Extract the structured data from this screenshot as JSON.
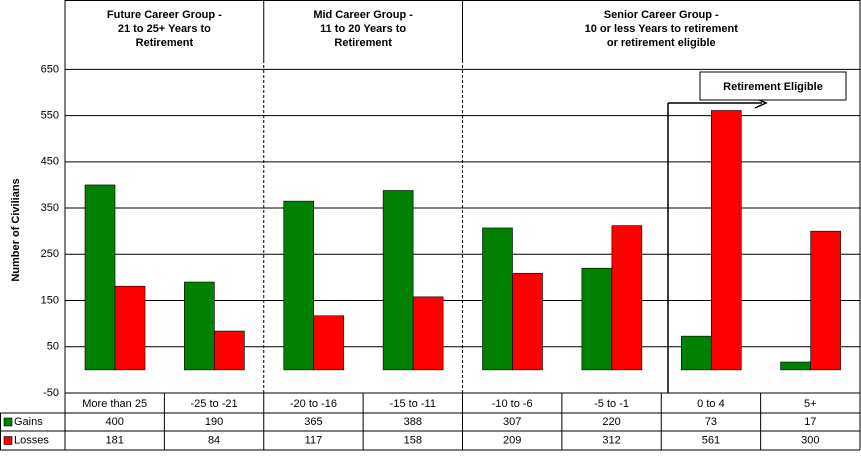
{
  "chart_data": {
    "type": "bar",
    "y_label": "Number of Civilians",
    "categories": [
      "More than 25",
      "-25 to -21",
      "-20 to -16",
      "-15 to -11",
      "-10 to -6",
      "-5 to -1",
      "0 to 4",
      "5+"
    ],
    "series": [
      {
        "name": "Gains",
        "color": "#008000",
        "values": [
          400,
          190,
          365,
          388,
          307,
          220,
          73,
          17
        ]
      },
      {
        "name": "Losses",
        "color": "#ff0000",
        "values": [
          181,
          84,
          117,
          158,
          209,
          312,
          561,
          300
        ]
      }
    ],
    "groups": [
      {
        "lines": [
          "Future Career Group -",
          "21 to 25+ Years to",
          "Retirement"
        ]
      },
      {
        "lines": [
          "Mid Career Group -",
          "11 to 20 Years to",
          "Retirement"
        ]
      },
      {
        "lines": [
          "Senior Career Group -",
          "10 or less Years to retirement",
          "or retirement eligible"
        ]
      }
    ],
    "annotation": "Retirement Eligible",
    "ylim": [
      -50,
      800
    ],
    "yticks": [
      -50,
      50,
      150,
      250,
      350,
      450,
      550,
      650
    ],
    "grid": true
  }
}
